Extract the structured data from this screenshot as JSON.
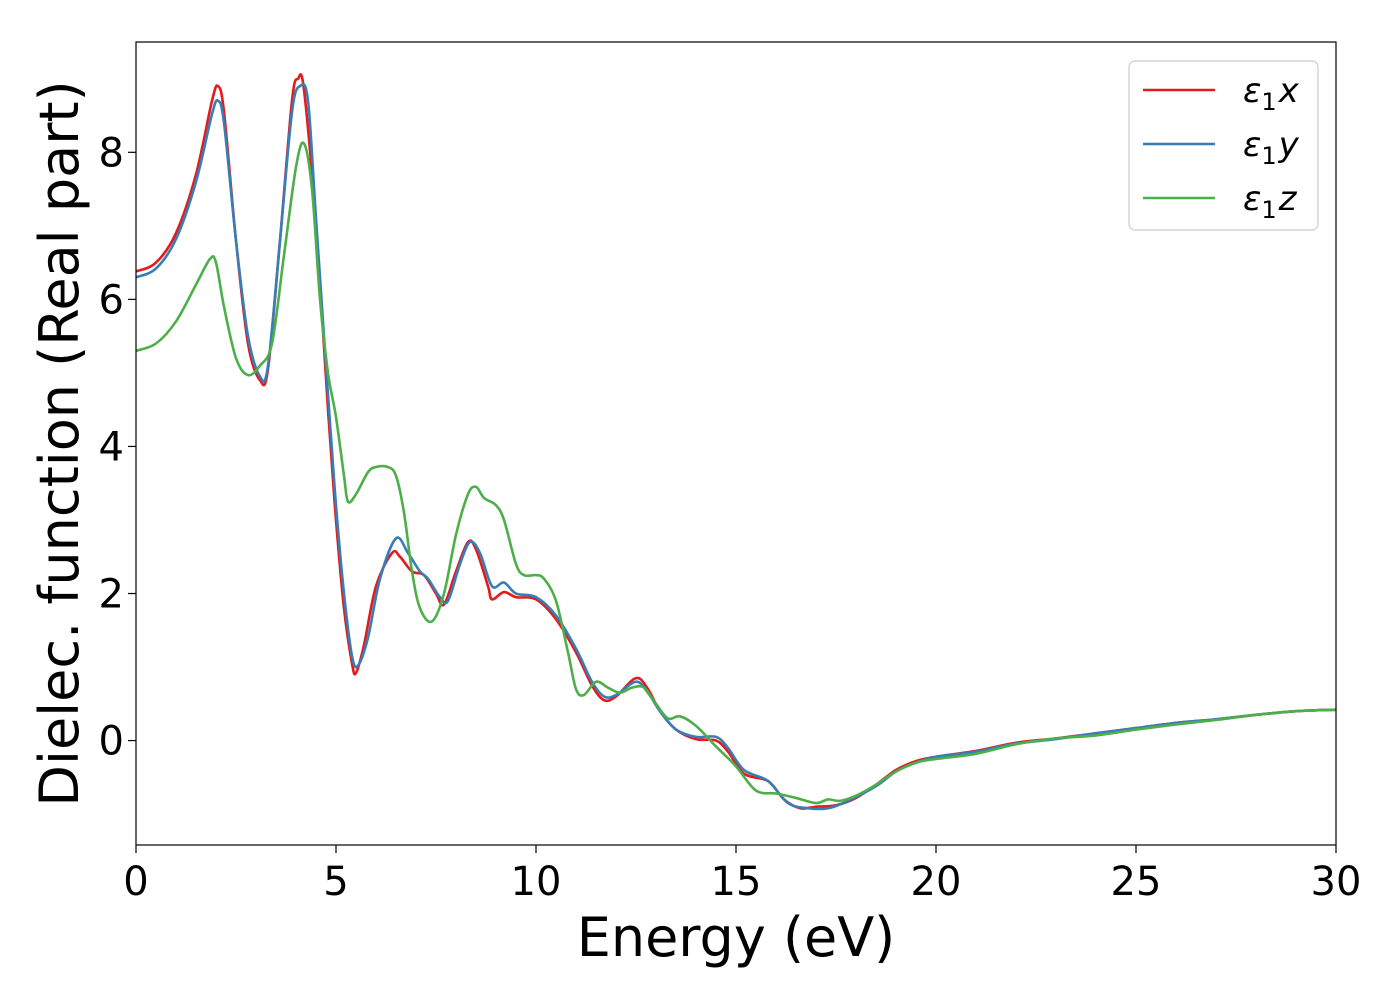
{
  "chart_data": {
    "type": "line",
    "xlabel": "Energy (eV)",
    "ylabel": "Dielec. function (Real part)",
    "xlim": [
      0,
      30
    ],
    "ylim": [
      -1.42,
      9.5
    ],
    "xticks": [
      0,
      5,
      10,
      15,
      20,
      25,
      30
    ],
    "yticks": [
      0,
      2,
      4,
      6,
      8
    ],
    "grid": false,
    "legend_position": "top-right",
    "series": [
      {
        "name": "ε₁x",
        "legend": {
          "symbol": "ε",
          "sub": "1",
          "suffix": "x"
        },
        "color": "#e41a1c",
        "points": [
          [
            0,
            6.38
          ],
          [
            0.5,
            6.5
          ],
          [
            1.0,
            6.9
          ],
          [
            1.5,
            7.7
          ],
          [
            1.9,
            8.7
          ],
          [
            2.05,
            8.9
          ],
          [
            2.2,
            8.55
          ],
          [
            2.5,
            6.8
          ],
          [
            2.8,
            5.4
          ],
          [
            3.1,
            4.9
          ],
          [
            3.3,
            5.05
          ],
          [
            3.6,
            6.8
          ],
          [
            3.9,
            8.7
          ],
          [
            4.05,
            9.0
          ],
          [
            4.2,
            8.85
          ],
          [
            4.5,
            7.0
          ],
          [
            4.8,
            4.5
          ],
          [
            5.0,
            3.0
          ],
          [
            5.2,
            1.8
          ],
          [
            5.4,
            1.05
          ],
          [
            5.5,
            0.92
          ],
          [
            5.7,
            1.3
          ],
          [
            6.0,
            2.1
          ],
          [
            6.4,
            2.55
          ],
          [
            6.6,
            2.5
          ],
          [
            6.9,
            2.3
          ],
          [
            7.2,
            2.25
          ],
          [
            7.5,
            2.0
          ],
          [
            7.7,
            1.85
          ],
          [
            8.0,
            2.3
          ],
          [
            8.3,
            2.7
          ],
          [
            8.5,
            2.6
          ],
          [
            8.8,
            2.1
          ],
          [
            8.9,
            1.92
          ],
          [
            9.2,
            2.02
          ],
          [
            9.5,
            1.95
          ],
          [
            10.0,
            1.92
          ],
          [
            10.5,
            1.65
          ],
          [
            11.0,
            1.2
          ],
          [
            11.4,
            0.75
          ],
          [
            11.7,
            0.55
          ],
          [
            12.0,
            0.6
          ],
          [
            12.5,
            0.85
          ],
          [
            12.8,
            0.7
          ],
          [
            13.1,
            0.4
          ],
          [
            13.5,
            0.15
          ],
          [
            14.0,
            0.02
          ],
          [
            14.5,
            0.0
          ],
          [
            14.8,
            -0.15
          ],
          [
            15.2,
            -0.45
          ],
          [
            15.8,
            -0.55
          ],
          [
            16.2,
            -0.8
          ],
          [
            16.6,
            -0.92
          ],
          [
            17.0,
            -0.9
          ],
          [
            17.5,
            -0.88
          ],
          [
            18.0,
            -0.78
          ],
          [
            18.5,
            -0.6
          ],
          [
            19.0,
            -0.4
          ],
          [
            19.5,
            -0.28
          ],
          [
            20.0,
            -0.22
          ],
          [
            21.0,
            -0.14
          ],
          [
            22.0,
            -0.03
          ],
          [
            23.0,
            0.03
          ],
          [
            24.0,
            0.1
          ],
          [
            25.0,
            0.17
          ],
          [
            26.0,
            0.24
          ],
          [
            27.0,
            0.29
          ],
          [
            28.0,
            0.35
          ],
          [
            29.0,
            0.4
          ],
          [
            30.0,
            0.42
          ]
        ]
      },
      {
        "name": "ε₁y",
        "legend": {
          "symbol": "ε",
          "sub": "1",
          "suffix": "y"
        },
        "color": "#377eb8",
        "points": [
          [
            0,
            6.3
          ],
          [
            0.5,
            6.42
          ],
          [
            1.0,
            6.82
          ],
          [
            1.5,
            7.6
          ],
          [
            1.9,
            8.52
          ],
          [
            2.05,
            8.7
          ],
          [
            2.2,
            8.4
          ],
          [
            2.5,
            6.8
          ],
          [
            2.8,
            5.5
          ],
          [
            3.1,
            4.95
          ],
          [
            3.3,
            5.1
          ],
          [
            3.6,
            6.8
          ],
          [
            3.9,
            8.55
          ],
          [
            4.1,
            8.9
          ],
          [
            4.3,
            8.7
          ],
          [
            4.5,
            7.1
          ],
          [
            4.8,
            4.7
          ],
          [
            5.0,
            3.2
          ],
          [
            5.2,
            2.0
          ],
          [
            5.4,
            1.15
          ],
          [
            5.55,
            1.02
          ],
          [
            5.8,
            1.4
          ],
          [
            6.1,
            2.2
          ],
          [
            6.5,
            2.75
          ],
          [
            6.8,
            2.55
          ],
          [
            7.1,
            2.3
          ],
          [
            7.3,
            2.2
          ],
          [
            7.6,
            1.95
          ],
          [
            7.8,
            1.9
          ],
          [
            8.1,
            2.4
          ],
          [
            8.35,
            2.7
          ],
          [
            8.6,
            2.55
          ],
          [
            8.9,
            2.1
          ],
          [
            9.2,
            2.15
          ],
          [
            9.5,
            2.0
          ],
          [
            10.0,
            1.95
          ],
          [
            10.5,
            1.7
          ],
          [
            11.0,
            1.25
          ],
          [
            11.4,
            0.8
          ],
          [
            11.7,
            0.6
          ],
          [
            12.0,
            0.62
          ],
          [
            12.5,
            0.8
          ],
          [
            12.8,
            0.65
          ],
          [
            13.1,
            0.4
          ],
          [
            13.5,
            0.15
          ],
          [
            14.0,
            0.05
          ],
          [
            14.5,
            0.05
          ],
          [
            14.8,
            -0.1
          ],
          [
            15.2,
            -0.4
          ],
          [
            15.8,
            -0.55
          ],
          [
            16.3,
            -0.85
          ],
          [
            16.8,
            -0.92
          ],
          [
            17.3,
            -0.92
          ],
          [
            17.8,
            -0.82
          ],
          [
            18.5,
            -0.62
          ],
          [
            19.0,
            -0.42
          ],
          [
            19.5,
            -0.3
          ],
          [
            20.0,
            -0.22
          ],
          [
            21.0,
            -0.15
          ],
          [
            22.0,
            -0.04
          ],
          [
            23.0,
            0.02
          ],
          [
            24.0,
            0.1
          ],
          [
            25.0,
            0.17
          ],
          [
            26.0,
            0.24
          ],
          [
            27.0,
            0.29
          ],
          [
            28.0,
            0.35
          ],
          [
            29.0,
            0.4
          ],
          [
            30.0,
            0.42
          ]
        ]
      },
      {
        "name": "ε₁z",
        "legend": {
          "symbol": "ε",
          "sub": "1",
          "suffix": "z"
        },
        "color": "#4daf4a",
        "points": [
          [
            0,
            5.3
          ],
          [
            0.5,
            5.4
          ],
          [
            1.0,
            5.7
          ],
          [
            1.5,
            6.2
          ],
          [
            1.85,
            6.55
          ],
          [
            2.0,
            6.5
          ],
          [
            2.2,
            5.9
          ],
          [
            2.5,
            5.2
          ],
          [
            2.8,
            4.97
          ],
          [
            3.1,
            5.1
          ],
          [
            3.4,
            5.4
          ],
          [
            3.7,
            6.6
          ],
          [
            4.0,
            7.8
          ],
          [
            4.2,
            8.12
          ],
          [
            4.4,
            7.5
          ],
          [
            4.6,
            6.0
          ],
          [
            4.8,
            5.0
          ],
          [
            5.0,
            4.4
          ],
          [
            5.2,
            3.6
          ],
          [
            5.3,
            3.25
          ],
          [
            5.5,
            3.35
          ],
          [
            5.8,
            3.65
          ],
          [
            6.0,
            3.72
          ],
          [
            6.3,
            3.72
          ],
          [
            6.5,
            3.6
          ],
          [
            6.7,
            3.1
          ],
          [
            6.9,
            2.3
          ],
          [
            7.1,
            1.8
          ],
          [
            7.4,
            1.62
          ],
          [
            7.7,
            2.0
          ],
          [
            8.0,
            2.8
          ],
          [
            8.3,
            3.35
          ],
          [
            8.5,
            3.45
          ],
          [
            8.7,
            3.3
          ],
          [
            9.0,
            3.2
          ],
          [
            9.2,
            3.0
          ],
          [
            9.5,
            2.4
          ],
          [
            9.7,
            2.25
          ],
          [
            10.0,
            2.25
          ],
          [
            10.2,
            2.2
          ],
          [
            10.5,
            1.9
          ],
          [
            10.8,
            1.2
          ],
          [
            11.0,
            0.7
          ],
          [
            11.2,
            0.62
          ],
          [
            11.5,
            0.8
          ],
          [
            11.8,
            0.72
          ],
          [
            12.1,
            0.65
          ],
          [
            12.4,
            0.72
          ],
          [
            12.7,
            0.72
          ],
          [
            13.0,
            0.5
          ],
          [
            13.3,
            0.3
          ],
          [
            13.6,
            0.33
          ],
          [
            14.0,
            0.2
          ],
          [
            14.5,
            -0.08
          ],
          [
            15.0,
            -0.35
          ],
          [
            15.5,
            -0.68
          ],
          [
            16.0,
            -0.72
          ],
          [
            16.5,
            -0.78
          ],
          [
            17.0,
            -0.85
          ],
          [
            17.3,
            -0.8
          ],
          [
            17.6,
            -0.82
          ],
          [
            18.0,
            -0.75
          ],
          [
            18.5,
            -0.6
          ],
          [
            19.0,
            -0.42
          ],
          [
            19.5,
            -0.3
          ],
          [
            20.0,
            -0.25
          ],
          [
            21.0,
            -0.18
          ],
          [
            22.0,
            -0.05
          ],
          [
            23.0,
            0.03
          ],
          [
            24.0,
            0.07
          ],
          [
            25.0,
            0.15
          ],
          [
            26.0,
            0.22
          ],
          [
            27.0,
            0.28
          ],
          [
            28.0,
            0.35
          ],
          [
            29.0,
            0.4
          ],
          [
            30.0,
            0.42
          ]
        ]
      }
    ]
  }
}
